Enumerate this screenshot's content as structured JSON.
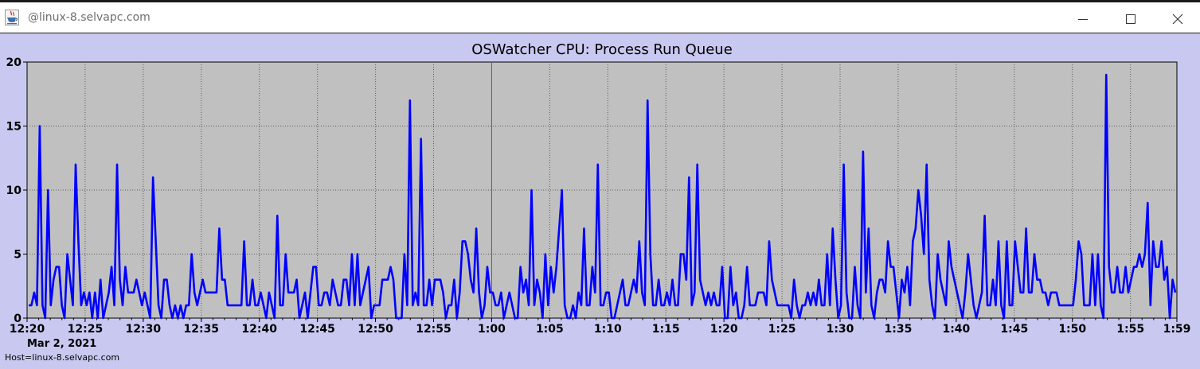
{
  "window": {
    "title": "@linux-8.selvapc.com",
    "icons": {
      "app": "java-cup-icon",
      "minimize": "minimize-icon",
      "maximize": "maximize-icon",
      "close": "close-icon"
    },
    "colors": {
      "background": "#c8c8f0",
      "plot_area": "#c0c0c0",
      "series": "#0000ff"
    }
  },
  "host_label": "Host=linux-8.selvapc.com",
  "chart_data": {
    "type": "line",
    "title": "OSWatcher CPU: Process Run Queue",
    "xlabel": "",
    "ylabel": "",
    "date_label": "Mar 2, 2021",
    "x_ticks": [
      "12:20",
      "12:25",
      "12:30",
      "12:35",
      "12:40",
      "12:45",
      "12:50",
      "12:55",
      "1:00",
      "1:05",
      "1:10",
      "1:15",
      "1:20",
      "1:25",
      "1:30",
      "1:35",
      "1:40",
      "1:45",
      "1:50",
      "1:55",
      "1:59"
    ],
    "y_ticks": [
      "0",
      "5",
      "10",
      "15",
      "20"
    ],
    "xlim": [
      "12:20",
      "1:59"
    ],
    "ylim": [
      0,
      20
    ],
    "grid": true,
    "legend": "none",
    "series": [
      {
        "values": [
          1,
          1,
          2,
          1,
          15,
          1,
          0,
          10,
          1,
          3,
          4,
          4,
          1,
          0,
          5,
          3,
          1,
          12,
          6,
          1,
          2,
          1,
          2,
          0,
          2,
          0,
          3,
          0,
          1,
          2,
          4,
          1,
          12,
          3,
          1,
          4,
          2,
          2,
          2,
          3,
          2,
          1,
          2,
          1,
          0,
          11,
          6,
          1,
          0,
          3,
          3,
          1,
          0,
          1,
          0,
          1,
          0,
          1,
          1,
          5,
          2,
          1,
          2,
          3,
          2,
          2,
          2,
          2,
          2,
          7,
          3,
          3,
          1,
          1,
          1,
          1,
          1,
          1,
          6,
          1,
          1,
          3,
          1,
          1,
          2,
          1,
          0,
          2,
          1,
          0,
          8,
          1,
          1,
          5,
          2,
          2,
          2,
          3,
          0,
          1,
          2,
          0,
          2,
          4,
          4,
          1,
          1,
          2,
          2,
          1,
          3,
          2,
          1,
          1,
          3,
          3,
          1,
          5,
          1,
          5,
          1,
          2,
          3,
          4,
          0,
          1,
          1,
          1,
          3,
          3,
          3,
          4,
          3,
          0,
          0,
          0,
          5,
          1,
          17,
          1,
          2,
          1,
          14,
          1,
          1,
          3,
          1,
          3,
          3,
          3,
          2,
          0,
          1,
          1,
          3,
          0,
          2,
          6,
          6,
          5,
          3,
          2,
          7,
          2,
          0,
          1,
          4,
          2,
          2,
          1,
          1,
          2,
          0,
          1,
          2,
          1,
          0,
          0,
          4,
          2,
          3,
          1,
          10,
          1,
          3,
          2,
          0,
          5,
          1,
          4,
          2,
          4,
          7,
          10,
          1,
          0,
          0,
          1,
          0,
          2,
          1,
          7,
          1,
          1,
          4,
          2,
          12,
          1,
          1,
          2,
          2,
          0,
          0,
          1,
          2,
          3,
          1,
          1,
          2,
          3,
          2,
          6,
          2,
          1,
          17,
          5,
          1,
          1,
          3,
          1,
          1,
          2,
          1,
          3,
          1,
          1,
          5,
          5,
          3,
          11,
          1,
          2,
          12,
          3,
          2,
          1,
          2,
          1,
          2,
          1,
          1,
          4,
          0,
          0,
          4,
          1,
          2,
          0,
          0,
          1,
          4,
          1,
          1,
          1,
          2,
          2,
          2,
          1,
          6,
          3,
          2,
          1,
          1,
          1,
          1,
          1,
          0,
          3,
          1,
          0,
          1,
          1,
          2,
          1,
          2,
          1,
          3,
          1,
          1,
          5,
          1,
          7,
          3,
          0,
          1,
          12,
          2,
          0,
          0,
          4,
          1,
          0,
          13,
          2,
          7,
          1,
          0,
          2,
          3,
          3,
          2,
          6,
          4,
          4,
          2,
          0,
          3,
          2,
          4,
          1,
          6,
          7,
          10,
          8,
          5,
          12,
          3,
          1,
          0,
          5,
          3,
          2,
          1,
          6,
          4,
          3,
          2,
          1,
          0,
          2,
          5,
          3,
          1,
          0,
          1,
          2,
          8,
          1,
          1,
          3,
          1,
          6,
          1,
          0,
          6,
          1,
          1,
          6,
          4,
          2,
          2,
          7,
          2,
          2,
          5,
          3,
          3,
          2,
          2,
          1,
          2,
          2,
          2,
          1,
          1,
          1,
          1,
          1,
          1,
          3,
          6,
          5,
          1,
          1,
          1,
          5,
          1,
          5,
          1,
          0,
          19,
          4,
          2,
          2,
          4,
          2,
          2,
          4,
          2,
          3,
          4,
          4,
          5,
          4,
          5,
          9,
          1,
          6,
          4,
          4,
          6,
          3,
          4,
          0,
          3,
          2
        ]
      }
    ]
  }
}
